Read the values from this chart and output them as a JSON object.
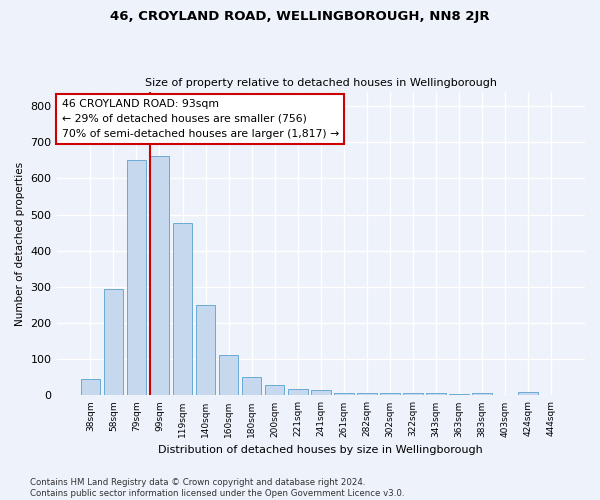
{
  "title": "46, CROYLAND ROAD, WELLINGBOROUGH, NN8 2JR",
  "subtitle": "Size of property relative to detached houses in Wellingborough",
  "xlabel": "Distribution of detached houses by size in Wellingborough",
  "ylabel": "Number of detached properties",
  "footer_line1": "Contains HM Land Registry data © Crown copyright and database right 2024.",
  "footer_line2": "Contains public sector information licensed under the Open Government Licence v3.0.",
  "categories": [
    "38sqm",
    "58sqm",
    "79sqm",
    "99sqm",
    "119sqm",
    "140sqm",
    "160sqm",
    "180sqm",
    "200sqm",
    "221sqm",
    "241sqm",
    "261sqm",
    "282sqm",
    "302sqm",
    "322sqm",
    "343sqm",
    "363sqm",
    "383sqm",
    "403sqm",
    "424sqm",
    "444sqm"
  ],
  "values": [
    46,
    293,
    651,
    661,
    478,
    251,
    113,
    51,
    29,
    18,
    14,
    8,
    6,
    8,
    7,
    7,
    4,
    7,
    1,
    9,
    1
  ],
  "bar_color": "#c5d8ee",
  "bar_edge_color": "#6aaad4",
  "background_color": "#eef2fb",
  "grid_color": "#ffffff",
  "vline_x_idx": 3,
  "vline_color": "#cc0000",
  "annotation_text": "46 CROYLAND ROAD: 93sqm\n← 29% of detached houses are smaller (756)\n70% of semi-detached houses are larger (1,817) →",
  "annotation_box_color": "#ffffff",
  "annotation_box_edge": "#cc0000",
  "ylim": [
    0,
    840
  ],
  "yticks": [
    0,
    100,
    200,
    300,
    400,
    500,
    600,
    700,
    800
  ]
}
